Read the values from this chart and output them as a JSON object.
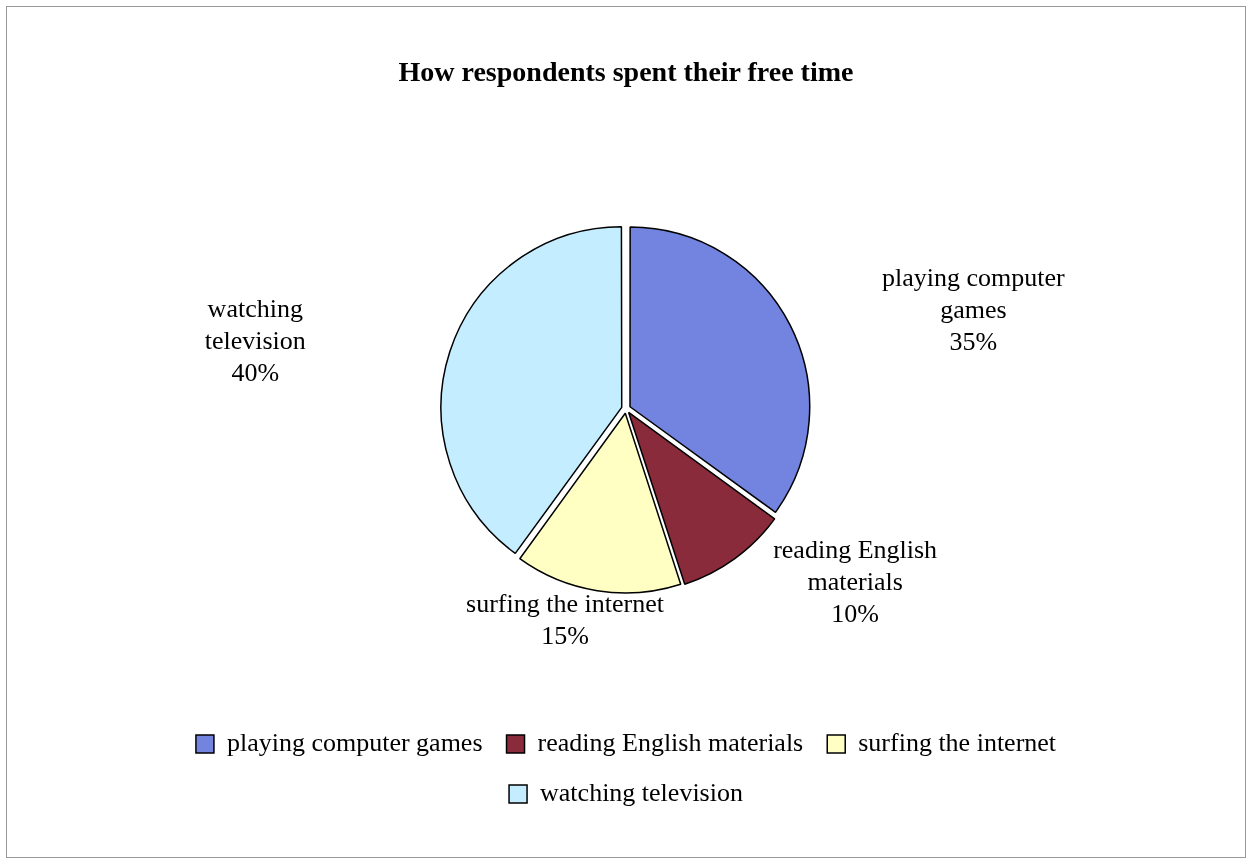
{
  "chart_data": {
    "type": "pie",
    "title": "How respondents spent their free time",
    "categories": [
      "playing computer games",
      "reading English materials",
      "surfing the internet",
      "watching television"
    ],
    "values": [
      35,
      10,
      15,
      40
    ],
    "value_labels": [
      "35%",
      "10%",
      "15%",
      "40%"
    ],
    "colors": [
      "#7384e0",
      "#8a2b3c",
      "#ffffc4",
      "#c4eeff"
    ],
    "legend": "bottom"
  }
}
